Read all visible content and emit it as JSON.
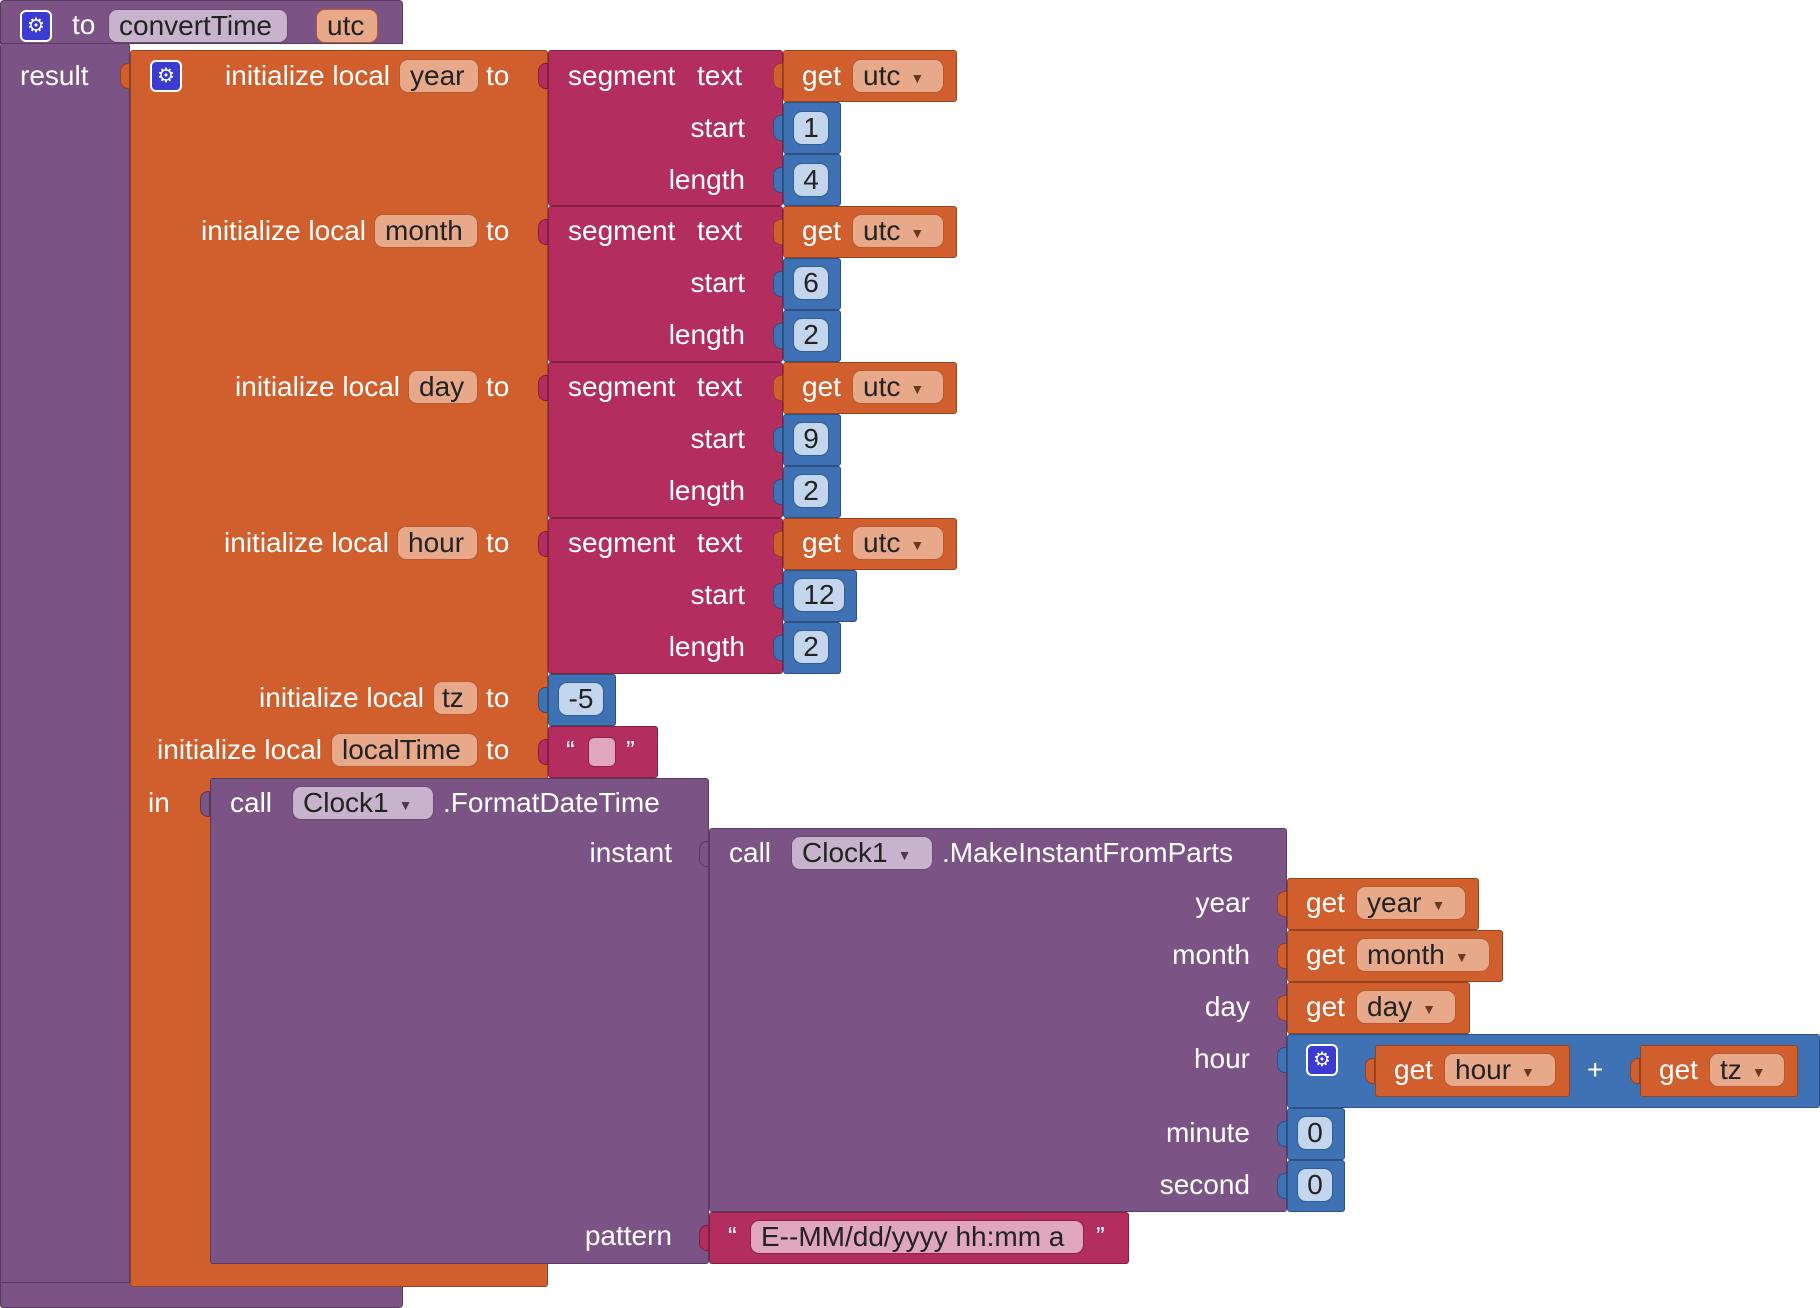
{
  "procedure": {
    "to_label": "to",
    "name": "convertTime",
    "param": "utc",
    "result_label": "result"
  },
  "labels": {
    "initialize_local": "initialize local",
    "to": "to",
    "segment": "segment",
    "text": "text",
    "start": "start",
    "length": "length",
    "get": "get",
    "in": "in",
    "call": "call",
    "plus": "+"
  },
  "locals": [
    {
      "name": "year",
      "get_var": "utc",
      "start": "1",
      "length": "4"
    },
    {
      "name": "month",
      "get_var": "utc",
      "start": "6",
      "length": "2"
    },
    {
      "name": "day",
      "get_var": "utc",
      "start": "9",
      "length": "2"
    },
    {
      "name": "hour",
      "get_var": "utc",
      "start": "12",
      "length": "2"
    }
  ],
  "tz_local": {
    "name": "tz",
    "value": "-5"
  },
  "localtime_local": {
    "name": "localTime",
    "open_quote": "“",
    "close_quote": "”"
  },
  "format_call": {
    "component": "Clock1",
    "method": ".FormatDateTime",
    "instant_label": "instant",
    "pattern_label": "pattern",
    "pattern_value": "E--MM/dd/yyyy hh:mm a",
    "open_quote": "“",
    "close_quote": "”"
  },
  "make_call": {
    "component": "Clock1",
    "method": ".MakeInstantFromParts",
    "params": {
      "year_label": "year",
      "year_var": "year",
      "month_label": "month",
      "month_var": "month",
      "day_label": "day",
      "day_var": "day",
      "hour_label": "hour",
      "hour_var1": "hour",
      "hour_var2": "tz",
      "minute_label": "minute",
      "minute_value": "0",
      "second_label": "second",
      "second_value": "0"
    }
  },
  "icons": {
    "gear": "gear-icon",
    "dropdown": "dropdown-arrow-icon"
  },
  "colors": {
    "procedure": "#7c5385",
    "variable": "#d05f2d",
    "text": "#b32d5e",
    "math": "#3f71b5",
    "gear": "#3b3bd1"
  }
}
